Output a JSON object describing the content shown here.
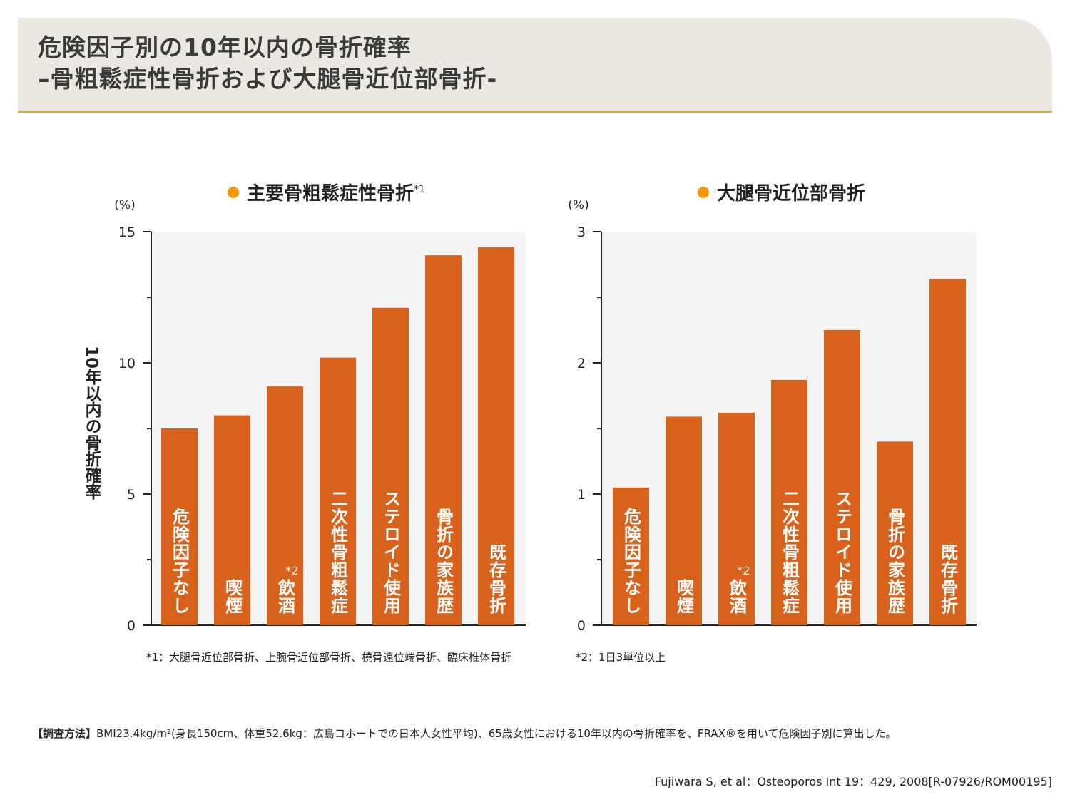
{
  "header": {
    "title_line1": "危険因子別の10年以内の骨折確率",
    "title_line2": "–骨粗鬆症性骨折および大腿骨近位部骨折-"
  },
  "accent_colors": {
    "bar": "#d8611b",
    "bullet": "#f39800",
    "header_bg": "#ebe8e1",
    "header_rule": "#e8a33a",
    "plot_bg": "#f4f4f4"
  },
  "chart_data": [
    {
      "type": "bar",
      "title": "主要骨粗鬆症性骨折",
      "title_note": "*1",
      "ylabel": "10年以内の骨折確率",
      "yunit": "(%)",
      "ylim": [
        0,
        15
      ],
      "yticks": [
        "0",
        "5",
        "10",
        "15"
      ],
      "ytick_values": [
        0,
        5,
        10,
        15
      ],
      "minor_tick_step": 2.5,
      "categories": [
        "危険因子なし",
        "喫煙",
        "飲酒",
        "二次性骨粗鬆症",
        "ステロイド使用",
        "骨折の家族歴",
        "既存骨折"
      ],
      "category_notes": [
        "",
        "",
        "*2",
        "",
        "",
        "",
        ""
      ],
      "values": [
        7.5,
        8.0,
        9.1,
        10.2,
        12.1,
        14.1,
        14.4
      ]
    },
    {
      "type": "bar",
      "title": "大腿骨近位部骨折",
      "yunit": "(%)",
      "ylim": [
        0,
        3
      ],
      "yticks": [
        "0",
        "1",
        "2",
        "3"
      ],
      "ytick_values": [
        0,
        1,
        2,
        3
      ],
      "minor_tick_step": 0.5,
      "categories": [
        "危険因子なし",
        "喫煙",
        "飲酒",
        "二次性骨粗鬆症",
        "ステロイド使用",
        "骨折の家族歴",
        "既存骨折"
      ],
      "category_notes": [
        "",
        "",
        "*2",
        "",
        "",
        "",
        ""
      ],
      "values": [
        1.05,
        1.59,
        1.62,
        1.87,
        2.25,
        1.4,
        2.64
      ]
    }
  ],
  "footnotes": {
    "note1": "*1：大腿骨近位部骨折、上腕骨近位部骨折、橈骨遠位端骨折、臨床椎体骨折",
    "note2": "*2：1日3単位以上"
  },
  "method": {
    "label": "【調査方法】",
    "text": "BMI23.4kg/m²(身長150cm、体重52.6kg：広島コホートでの日本人女性平均)、65歳女性における10年以内の骨折確率を、FRAX®を用いて危険因子別に算出した。"
  },
  "citation": "Fujiwara S, et al：Osteoporos Int 19：429, 2008[R-07926/ROM00195]"
}
